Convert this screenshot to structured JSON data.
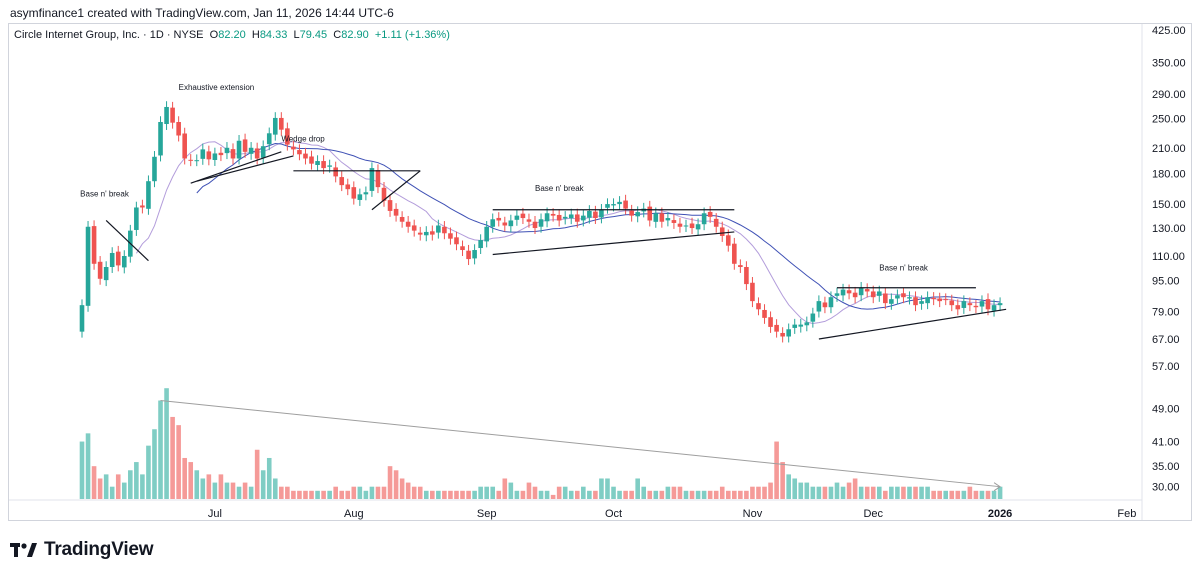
{
  "header": {
    "credit": "asymfinance1 created with TradingView.com, Jan 11, 2026 14:44 UTC-6"
  },
  "legend": {
    "symbol": "Circle Internet Group, Inc. · 1D · NYSE",
    "open_label": "O",
    "open": "82.20",
    "high_label": "H",
    "high": "84.33",
    "low_label": "L",
    "low": "79.45",
    "close_label": "C",
    "close": "82.90",
    "change": "+1.11 (+1.36%)"
  },
  "footer": {
    "brand": "TradingView"
  },
  "colors": {
    "up": "#26a69a",
    "down": "#ef5350",
    "vol_up": "#7fcdc4",
    "vol_down": "#f59a98",
    "ma_fast": "#b39ddb",
    "ma_slow": "#3f51b5",
    "line": "#131722",
    "volume_trend": "#9e9e9e"
  },
  "chart_data": {
    "type": "candlestick",
    "title": "Circle Internet Group, Inc. · 1D · NYSE",
    "scale": "log",
    "ylim": [
      55,
      440
    ],
    "price_ticks": [
      "425.00",
      "350.00",
      "290.00",
      "250.00",
      "210.00",
      "180.00",
      "150.00",
      "130.00",
      "110.00",
      "95.00",
      "79.00",
      "67.00",
      "57.00"
    ],
    "volume_ticks": [
      "49.00",
      "41.00",
      "35.00",
      "30.00"
    ],
    "x_ticks": [
      {
        "label": "Jul",
        "index": 22,
        "bold": false
      },
      {
        "label": "Aug",
        "index": 45,
        "bold": false
      },
      {
        "label": "Sep",
        "index": 67,
        "bold": false
      },
      {
        "label": "Oct",
        "index": 88,
        "bold": false
      },
      {
        "label": "Nov",
        "index": 111,
        "bold": false
      },
      {
        "label": "Dec",
        "index": 131,
        "bold": false
      },
      {
        "label": "2026",
        "index": 152,
        "bold": true
      },
      {
        "label": "Feb",
        "index": 173,
        "bold": false
      }
    ],
    "closes": [
      82,
      131,
      105,
      96,
      103,
      112,
      104,
      110,
      128,
      147,
      147,
      172,
      199,
      245,
      268,
      244,
      226,
      197,
      195,
      195,
      208,
      196,
      203,
      201,
      210,
      197,
      219,
      205,
      210,
      197,
      212,
      229,
      251,
      234,
      214,
      208,
      202,
      197,
      191,
      194,
      186,
      189,
      177,
      168,
      164,
      155,
      159,
      161,
      186,
      166,
      153,
      144,
      140,
      135,
      131,
      128,
      125,
      127,
      125,
      132,
      126,
      122,
      118,
      114,
      108,
      114,
      121,
      131,
      137,
      136,
      132,
      136,
      140,
      138,
      135,
      130,
      137,
      142,
      140,
      136,
      139,
      141,
      135,
      140,
      144,
      138,
      145,
      150,
      150,
      152,
      146,
      140,
      143,
      146,
      136,
      142,
      135,
      138,
      134,
      131,
      132,
      130,
      133,
      142,
      139,
      131,
      124,
      117,
      105,
      103,
      93,
      84,
      80,
      76,
      72,
      70,
      68,
      71,
      73,
      73,
      74,
      78,
      84,
      81,
      86,
      88,
      90,
      88,
      86,
      91,
      89,
      86,
      89,
      83,
      85,
      87,
      86,
      86,
      82,
      84,
      86,
      85,
      84,
      85,
      82,
      80,
      84,
      82,
      81,
      84,
      80,
      82,
      83
    ],
    "volumes": [
      41,
      43,
      35,
      32,
      33,
      30,
      33,
      31,
      34,
      36,
      33,
      40,
      44,
      51,
      54,
      47,
      45,
      37,
      36,
      34,
      32,
      33,
      31,
      33,
      31,
      31,
      30,
      31,
      30,
      39,
      34,
      37,
      32,
      30,
      30,
      29,
      29,
      29,
      29,
      29,
      29,
      29,
      30,
      29,
      29,
      30,
      30,
      29,
      30,
      30,
      30,
      35,
      34,
      32,
      31,
      30,
      30,
      29,
      29,
      29,
      29,
      29,
      29,
      29,
      29,
      29,
      30,
      30,
      30,
      29,
      32,
      31,
      29,
      29,
      31,
      30,
      29,
      29,
      28,
      30,
      30,
      29,
      29,
      30,
      29,
      29,
      32,
      32,
      30,
      29,
      29,
      29,
      32,
      30,
      29,
      29,
      29,
      30,
      30,
      30,
      29,
      29,
      29,
      29,
      29,
      29,
      30,
      29,
      29,
      29,
      29,
      30,
      30,
      30,
      31,
      41,
      36,
      33,
      32,
      31,
      31,
      30,
      30,
      30,
      30,
      31,
      30,
      31,
      32,
      30,
      30,
      30,
      30,
      29,
      30,
      30,
      30,
      30,
      30,
      30,
      30,
      29,
      29,
      29,
      29,
      29,
      29,
      30,
      29,
      29,
      29,
      29,
      30
    ],
    "volume_ylim": [
      27,
      56
    ],
    "annotations": [
      {
        "text": "Base n' break",
        "index": 4,
        "price": 157
      },
      {
        "text": "Exhaustive extension",
        "index": 16,
        "price": 297
      },
      {
        "text": "Wedge drop",
        "index": 33,
        "price": 218
      },
      {
        "text": "Base n' break",
        "index": 75,
        "price": 162
      },
      {
        "text": "Base n' break",
        "index": 132,
        "price": 101
      }
    ],
    "trend_lines": [
      {
        "from": [
          4,
          136
        ],
        "to": [
          11,
          107
        ]
      },
      {
        "from": [
          18,
          170
        ],
        "to": [
          33,
          205
        ]
      },
      {
        "from": [
          19,
          172
        ],
        "to": [
          35,
          200
        ]
      },
      {
        "from": [
          48,
          145
        ],
        "to": [
          56,
          183
        ]
      },
      {
        "from": [
          35,
          183
        ],
        "to": [
          56,
          183
        ]
      },
      {
        "from": [
          68,
          111
        ],
        "to": [
          108,
          127
        ]
      },
      {
        "from": [
          68,
          145
        ],
        "to": [
          108,
          145
        ]
      },
      {
        "from": [
          122,
          67
        ],
        "to": [
          153,
          80
        ]
      },
      {
        "from": [
          125,
          91
        ],
        "to": [
          148,
          91
        ]
      }
    ],
    "volume_trend": {
      "from": [
        13,
        51
      ],
      "to": [
        152,
        30
      ]
    }
  }
}
